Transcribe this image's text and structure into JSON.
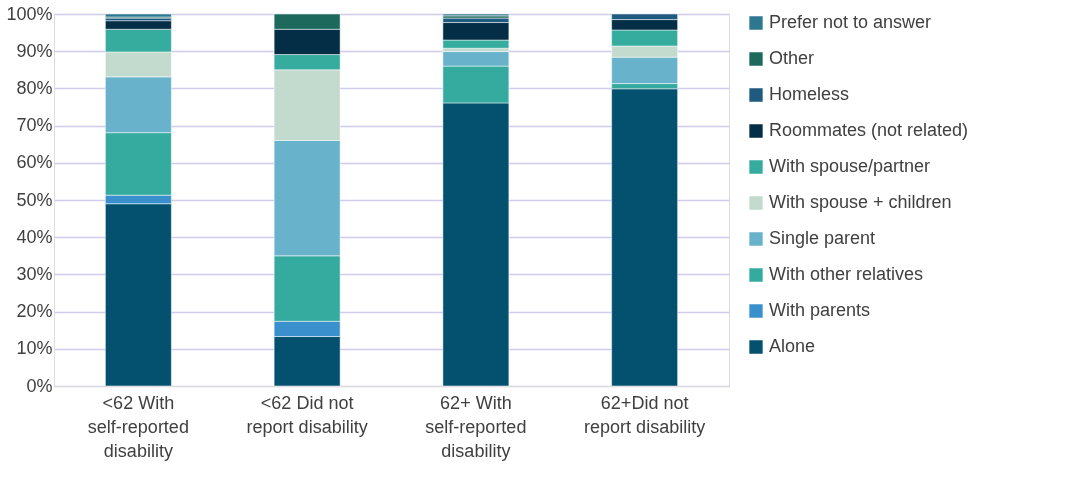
{
  "chart_data": {
    "type": "bar",
    "stacked": true,
    "categories": [
      "<62 With self-reported disability",
      "<62 Did not report disability",
      "62+ With self-reported disability",
      "62+Did not report disability"
    ],
    "series": [
      {
        "name": "Alone",
        "color": "#03506f",
        "values": [
          49.0,
          13.3,
          76.1,
          79.9
        ]
      },
      {
        "name": "With parents",
        "color": "#3a90cc",
        "values": [
          2.3,
          4.1,
          0,
          0
        ]
      },
      {
        "name": "With other relatives",
        "color": "#35aba0",
        "values": [
          16.8,
          17.6,
          9.9,
          1.4
        ]
      },
      {
        "name": "Single parent",
        "color": "#68b3cb",
        "values": [
          15.0,
          31.0,
          3.9,
          7.1
        ]
      },
      {
        "name": "With spouse + children",
        "color": "#c3dace",
        "values": [
          6.7,
          19.0,
          0.9,
          3.0
        ]
      },
      {
        "name": "With spouse/partner",
        "color": "#36ac9f",
        "values": [
          6.1,
          4.1,
          2.2,
          4.3
        ]
      },
      {
        "name": "Roommates (not related)",
        "color": "#032e45",
        "values": [
          2.3,
          6.8,
          4.7,
          2.8
        ]
      },
      {
        "name": "Homeless",
        "color": "#1f5a80",
        "values": [
          0.7,
          0,
          1.2,
          1.5
        ]
      },
      {
        "name": "Other",
        "color": "#1d6a5c",
        "values": [
          0.3,
          4.1,
          0.6,
          0
        ]
      },
      {
        "name": "Prefer not to answer",
        "color": "#2e7791",
        "values": [
          0.8,
          0,
          0.5,
          0
        ]
      }
    ],
    "ylim": [
      0,
      100
    ],
    "yticks": [
      {
        "value": 0,
        "label": "0%"
      },
      {
        "value": 10,
        "label": "10%"
      },
      {
        "value": 20,
        "label": "20%"
      },
      {
        "value": 30,
        "label": "30%"
      },
      {
        "value": 40,
        "label": "40%"
      },
      {
        "value": 50,
        "label": "50%"
      },
      {
        "value": 60,
        "label": "60%"
      },
      {
        "value": 70,
        "label": "70%"
      },
      {
        "value": 80,
        "label": "80%"
      },
      {
        "value": 90,
        "label": "90%"
      },
      {
        "value": 100,
        "label": "100%"
      }
    ],
    "grid": "y",
    "legend": "right"
  }
}
